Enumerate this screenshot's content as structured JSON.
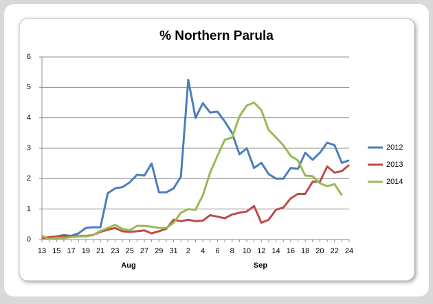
{
  "chart_data": {
    "type": "line",
    "title": "% Northern Parula",
    "categories": [
      "13",
      null,
      "15",
      null,
      "17",
      null,
      "19",
      null,
      "21",
      null,
      "23",
      null,
      "25",
      null,
      "27",
      null,
      "29",
      null,
      "31",
      null,
      "2",
      null,
      "4",
      null,
      "6",
      null,
      "8",
      null,
      "10",
      null,
      "12",
      null,
      "14",
      null,
      "16",
      null,
      "18",
      null,
      "20",
      null,
      "22",
      null,
      "24"
    ],
    "category_groups": [
      "Aug",
      "Sep"
    ],
    "series": [
      {
        "name": "2012",
        "color": "#4a7ebb",
        "values": [
          0.05,
          0.05,
          0.1,
          0.15,
          0.12,
          0.2,
          0.38,
          0.4,
          0.4,
          1.52,
          1.68,
          1.72,
          1.88,
          2.13,
          2.1,
          2.5,
          1.55,
          1.55,
          1.68,
          2.07,
          5.25,
          4.0,
          4.48,
          4.17,
          4.2,
          3.88,
          3.5,
          2.8,
          3.0,
          2.35,
          2.52,
          2.15,
          2.0,
          2.0,
          2.35,
          2.32,
          2.85,
          2.62,
          2.85,
          3.18,
          3.1,
          2.52,
          2.6
        ]
      },
      {
        "name": "2013",
        "color": "#be4b48",
        "values": [
          0.05,
          0.08,
          0.1,
          0.12,
          0.12,
          0.12,
          0.12,
          0.15,
          0.25,
          0.32,
          0.38,
          0.27,
          0.25,
          0.27,
          0.3,
          0.2,
          0.27,
          0.35,
          0.65,
          0.6,
          0.65,
          0.6,
          0.62,
          0.8,
          0.75,
          0.7,
          0.82,
          0.88,
          0.92,
          1.1,
          0.55,
          0.65,
          0.98,
          1.05,
          1.35,
          1.5,
          1.5,
          1.9,
          1.9,
          2.4,
          2.2,
          2.25,
          2.45
        ]
      },
      {
        "name": "2014",
        "color": "#98b954",
        "values": [
          0.12,
          0.02,
          0.05,
          0.05,
          0.08,
          0.1,
          0.1,
          0.15,
          0.28,
          0.38,
          0.48,
          0.35,
          0.3,
          0.45,
          0.45,
          0.42,
          0.38,
          0.38,
          0.55,
          0.88,
          1.0,
          0.98,
          1.45,
          2.2,
          2.75,
          3.28,
          3.35,
          4.05,
          4.4,
          4.5,
          4.25,
          3.6,
          3.35,
          3.1,
          2.75,
          2.6,
          2.1,
          2.08,
          1.85,
          1.75,
          1.82,
          1.45,
          null
        ]
      }
    ],
    "ylim": [
      0,
      6
    ],
    "yticks": [
      0,
      1,
      2,
      3,
      4,
      5,
      6
    ],
    "grid": true,
    "legend": "right"
  }
}
